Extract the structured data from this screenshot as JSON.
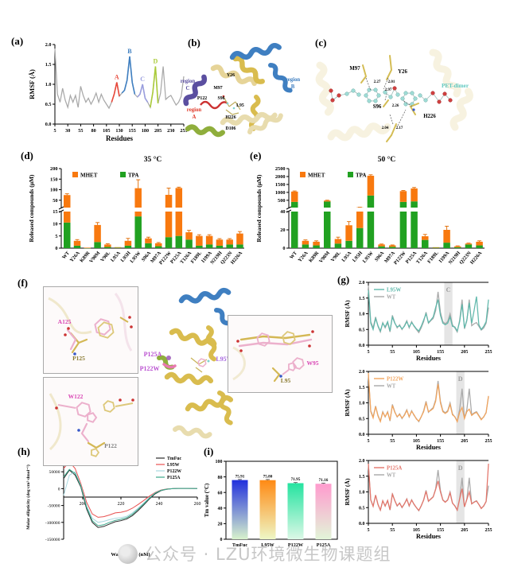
{
  "figure": {
    "panel_labels": {
      "a": "(a)",
      "b": "(b)",
      "c": "(c)",
      "d": "(d)",
      "e": "(e)",
      "f": "(f)",
      "g": "(g)",
      "h": "(h)",
      "i": "(i)"
    }
  },
  "watermark": {
    "logo": "public-account-logo-icon",
    "text": "公众号 · LZU环境微生物课题组"
  },
  "rmsf": {
    "x": [
      5,
      10,
      15,
      20,
      25,
      30,
      35,
      40,
      45,
      50,
      55,
      60,
      65,
      70,
      75,
      80,
      85,
      90,
      95,
      100,
      105,
      110,
      115,
      120,
      125,
      130,
      135,
      140,
      145,
      150,
      155,
      160,
      165,
      170,
      175,
      180,
      185,
      190,
      195,
      200,
      205,
      210,
      215,
      220,
      225,
      230,
      235,
      240,
      245,
      250,
      255
    ],
    "wt": [
      1.9,
      0.75,
      0.55,
      0.9,
      0.6,
      0.42,
      0.72,
      0.55,
      0.72,
      0.42,
      0.95,
      0.72,
      0.55,
      0.65,
      0.5,
      0.62,
      0.78,
      0.55,
      0.75,
      0.6,
      0.5,
      0.4,
      0.55,
      0.75,
      1.05,
      0.7,
      0.78,
      0.85,
      1.1,
      1.7,
      1.05,
      0.75,
      0.68,
      0.75,
      1.0,
      0.65,
      0.55,
      0.42,
      0.8,
      1.45,
      0.52,
      0.78,
      1.45,
      0.62,
      0.68,
      0.72,
      0.6,
      0.48,
      0.55,
      0.7,
      1.2
    ]
  },
  "structure_panels": {
    "b": {
      "regions": [
        {
          "word": "region",
          "letter": "C",
          "color": "#5b4fa0"
        },
        {
          "word": "region",
          "letter": "B",
          "color": "#3f7fc1"
        },
        {
          "word": "region",
          "letter": "A",
          "color": "#e03a2a"
        }
      ],
      "residues": [
        "Y26",
        "M97",
        "P122",
        "S96",
        "L95",
        "H226",
        "D106"
      ]
    },
    "c": {
      "residues": [
        "M97",
        "Y26",
        "S96",
        "H226"
      ],
      "ligand_label": "PET-dimer",
      "distances": [
        "2.27",
        "2.01",
        "2.97",
        "2.26",
        "2.04",
        "2.17"
      ]
    },
    "f": {
      "insets": [
        {
          "mutant": "A125",
          "wild": "P125"
        },
        {
          "mutant": "W122",
          "wild": "P122"
        },
        {
          "mutant": "W95",
          "wild": "L95"
        }
      ],
      "overview_labels": [
        "P125A",
        "P122W",
        "L95W"
      ]
    }
  },
  "chart_data": [
    {
      "panel": "a",
      "type": "line",
      "xlabel": "Residues",
      "ylabel": "RMSF (Å)",
      "xlim": [
        5,
        255
      ],
      "ylim": [
        0,
        2
      ],
      "xticks": [
        5,
        30,
        55,
        80,
        105,
        130,
        155,
        180,
        205,
        230,
        255
      ],
      "ytick_labels": [
        "0.0",
        "0.5",
        "1.0",
        "1.5",
        "2.0"
      ],
      "x": "rmsf",
      "series": [
        {
          "name": "WT",
          "color": "#a8a8a8",
          "wt": true
        }
      ],
      "regions": [
        {
          "label": "A",
          "color": "#e8483a",
          "range": [
            115,
            130
          ]
        },
        {
          "label": "B",
          "color": "#3f7fc1",
          "range": [
            135,
            160
          ]
        },
        {
          "label": "C",
          "color": "#9a9ede",
          "range": [
            165,
            185
          ]
        },
        {
          "label": "D",
          "color": "#aacb3a",
          "range": [
            188,
            207
          ]
        }
      ]
    },
    {
      "panel": "d",
      "type": "stacked_bar",
      "title": "35 °C",
      "ylabel": "Released compounds (μM)",
      "legend": [
        "MHET",
        "TPA"
      ],
      "colors": {
        "MHET": "#f8790f",
        "TPA": "#21a121"
      },
      "categories": [
        "WT",
        "Y26A",
        "K89R",
        "V90M",
        "V90L",
        "L95A",
        "L95H",
        "L95W",
        "S96A",
        "M97A",
        "P122W",
        "P125A",
        "T126A",
        "F189L",
        "I199A",
        "N219H",
        "Q223N",
        "H226A"
      ],
      "TPA": [
        10.5,
        1,
        0.1,
        2.5,
        0.5,
        0.2,
        1,
        13,
        2,
        0.8,
        4.5,
        5,
        3.5,
        1,
        1.5,
        1,
        1.5,
        1.5
      ],
      "MHET": [
        64,
        2,
        0.1,
        7,
        1,
        0.2,
        2,
        94,
        2,
        1.2,
        71,
        103,
        3,
        4,
        3.5,
        2.5,
        2,
        4.5
      ],
      "errors": [
        6,
        0.5,
        0,
        1,
        0.3,
        0.1,
        1,
        40,
        0.5,
        0.3,
        32,
        4,
        0.8,
        0.5,
        0.5,
        0.4,
        0.4,
        0.8
      ],
      "broken_axis": {
        "lower_range": [
          0,
          15
        ],
        "lower_ticks": [
          0,
          5,
          10,
          15
        ],
        "upper_range": [
          15,
          200
        ],
        "upper_ticks": [
          50,
          100,
          150,
          200
        ]
      }
    },
    {
      "panel": "e",
      "type": "stacked_bar",
      "title": "50 °C",
      "ylabel": "Released compounds (μM)",
      "legend": [
        "MHET",
        "TPA"
      ],
      "colors": {
        "MHET": "#f8790f",
        "TPA": "#21a121"
      },
      "categories": [
        "WT",
        "Y26A",
        "K89R",
        "V90M",
        "V90L",
        "L95A",
        "L95H",
        "L95W",
        "S96A",
        "M97A",
        "P122W",
        "P125A",
        "T126A",
        "F189L",
        "I199A",
        "N219H",
        "Q223N",
        "H226A"
      ],
      "TPA": [
        400,
        4,
        3,
        420,
        5,
        8,
        22,
        800,
        2,
        1.5,
        400,
        430,
        9,
        0.5,
        6,
        1,
        4,
        3
      ],
      "MHET": [
        650,
        4,
        4,
        60,
        5,
        17,
        33,
        1250,
        2,
        1.5,
        680,
        820,
        4,
        0.5,
        14,
        1,
        1,
        4
      ],
      "errors": [
        40,
        1,
        1,
        25,
        2,
        4,
        6,
        60,
        0.5,
        0.5,
        40,
        60,
        2,
        0.2,
        4,
        0.5,
        0.5,
        1
      ],
      "broken_axis": {
        "lower_range": [
          0,
          40
        ],
        "lower_ticks": [
          0,
          20,
          40
        ],
        "upper_range": [
          40,
          2500
        ],
        "upper_ticks": [
          500,
          1000,
          1500,
          2000,
          2500
        ]
      }
    },
    {
      "panel": "g1",
      "type": "line",
      "xlabel": "Residues",
      "ylabel": "RMSF (Å)",
      "xlim": [
        5,
        255
      ],
      "ylim": [
        0,
        2
      ],
      "xticks": [
        5,
        55,
        105,
        155,
        205,
        255
      ],
      "ytick_labels": [
        "0.0",
        "0.5",
        "1.0",
        "1.5",
        "2.0"
      ],
      "x": "rmsf",
      "band": {
        "label": "C",
        "range": [
          163,
          180
        ]
      },
      "series": [
        {
          "name": "L95W",
          "color": "#5fb8ab",
          "y": [
            1.75,
            0.7,
            0.5,
            0.85,
            0.62,
            0.45,
            0.7,
            0.58,
            0.75,
            0.45,
            0.9,
            0.7,
            0.58,
            0.62,
            0.52,
            0.6,
            0.75,
            0.58,
            0.72,
            0.62,
            0.52,
            0.45,
            0.6,
            0.8,
            1.0,
            0.72,
            0.8,
            0.9,
            1.2,
            1.45,
            0.95,
            0.7,
            0.65,
            0.7,
            0.9,
            0.6,
            0.58,
            0.45,
            0.75,
            1.3,
            0.55,
            0.8,
            1.35,
            0.7,
            1.1,
            1.55,
            0.65,
            0.5,
            0.6,
            0.75,
            1.45
          ]
        },
        {
          "name": "WT",
          "color": "#a8a8a8",
          "wt": true
        }
      ]
    },
    {
      "panel": "g2",
      "type": "line",
      "xlabel": "Residues",
      "ylabel": "RMSF (Å)",
      "xlim": [
        5,
        255
      ],
      "ylim": [
        0,
        2
      ],
      "xticks": [
        5,
        55,
        105,
        155,
        205,
        255
      ],
      "ytick_labels": [
        "0.0",
        "0.5",
        "1.0",
        "1.5",
        "2.0"
      ],
      "x": "rmsf",
      "band": {
        "label": "D",
        "range": [
          188,
          205
        ]
      },
      "series": [
        {
          "name": "P122W",
          "color": "#f2a45c",
          "y": [
            1.95,
            0.72,
            0.52,
            0.88,
            0.58,
            0.4,
            0.7,
            0.56,
            0.7,
            0.44,
            0.92,
            0.7,
            0.56,
            0.63,
            0.52,
            0.6,
            0.76,
            0.56,
            0.73,
            0.62,
            0.48,
            0.42,
            0.56,
            0.72,
            1.0,
            0.72,
            0.76,
            0.82,
            1.05,
            1.6,
            1.0,
            0.72,
            0.66,
            0.72,
            0.95,
            0.62,
            0.56,
            0.4,
            0.7,
            0.85,
            0.5,
            0.72,
            0.8,
            0.6,
            0.66,
            0.7,
            0.58,
            0.46,
            0.56,
            0.68,
            1.22
          ]
        },
        {
          "name": "WT",
          "color": "#a8a8a8",
          "wt": true
        }
      ]
    },
    {
      "panel": "g3",
      "type": "line",
      "xlabel": "Residues",
      "ylabel": "RMSF (Å)",
      "xlim": [
        5,
        255
      ],
      "ylim": [
        0,
        2
      ],
      "xticks": [
        5,
        55,
        105,
        155,
        205,
        255
      ],
      "ytick_labels": [
        "0.0",
        "0.5",
        "1.0",
        "1.5",
        "2.0"
      ],
      "x": "rmsf",
      "band": {
        "label": "D",
        "range": [
          188,
          205
        ]
      },
      "series": [
        {
          "name": "P125A",
          "color": "#e4756a",
          "y": [
            1.9,
            0.74,
            0.54,
            0.9,
            0.6,
            0.42,
            0.72,
            0.55,
            0.73,
            0.43,
            0.93,
            0.73,
            0.56,
            0.64,
            0.51,
            0.62,
            0.77,
            0.56,
            0.74,
            0.61,
            0.5,
            0.41,
            0.56,
            0.74,
            1.02,
            0.71,
            0.77,
            0.84,
            1.08,
            1.35,
            1.0,
            0.74,
            0.67,
            0.74,
            0.97,
            0.64,
            0.56,
            0.42,
            0.78,
            1.1,
            0.53,
            0.76,
            1.0,
            0.62,
            0.67,
            0.71,
            0.6,
            0.47,
            0.56,
            0.69,
            1.9
          ]
        },
        {
          "name": "WT",
          "color": "#a8a8a8",
          "wt": true
        }
      ]
    },
    {
      "panel": "h",
      "type": "line",
      "xlabel": "Wavelength (nM)",
      "ylabel": "Molar ellipticity (deg·cm²·dmol⁻¹)",
      "xlim": [
        190,
        260
      ],
      "ylim": [
        -150000,
        100000
      ],
      "xticks": [
        200,
        220,
        240,
        260
      ],
      "yticks": [
        100000,
        50000,
        0,
        -50000,
        -100000,
        -150000
      ],
      "x_values": [
        190,
        193,
        196,
        199,
        202,
        205,
        208,
        211,
        214,
        217,
        220,
        223,
        226,
        229,
        232,
        235,
        238,
        241,
        244,
        247,
        250,
        255,
        260
      ],
      "series": [
        {
          "name": "TmFuc",
          "color": "#2b2b2b",
          "y": [
            30000,
            55000,
            40000,
            5000,
            -60000,
            -100000,
            -115000,
            -112000,
            -105000,
            -98000,
            -95000,
            -90000,
            -80000,
            -65000,
            -48000,
            -30000,
            -15000,
            -6000,
            -2000,
            0,
            1000,
            1000,
            500
          ]
        },
        {
          "name": "L95W",
          "color": "#e85050",
          "y": [
            60000,
            80000,
            60000,
            15000,
            -40000,
            -75000,
            -85000,
            -83000,
            -78000,
            -72000,
            -70000,
            -66000,
            -58000,
            -47000,
            -35000,
            -22000,
            -11000,
            -4000,
            -1000,
            0,
            500,
            500,
            300
          ]
        },
        {
          "name": "P122W",
          "color": "#a8d8e0",
          "y": [
            -20000,
            40000,
            50000,
            10000,
            -50000,
            -88000,
            -100000,
            -97000,
            -92000,
            -88000,
            -86000,
            -82000,
            -72000,
            -58000,
            -42000,
            -26000,
            -12000,
            -5000,
            -1500,
            0,
            500,
            500,
            300
          ]
        },
        {
          "name": "P125A",
          "color": "#3aa88a",
          "y": [
            35000,
            57000,
            45000,
            8000,
            -55000,
            -95000,
            -110000,
            -107000,
            -100000,
            -94000,
            -91000,
            -86000,
            -76000,
            -61000,
            -45000,
            -28000,
            -13000,
            -5000,
            -1500,
            0,
            800,
            800,
            400
          ]
        }
      ]
    },
    {
      "panel": "i",
      "type": "gradient_bar",
      "ylabel": "Tm value (°C)",
      "ylim": [
        0,
        100
      ],
      "yticks": [
        0,
        20,
        40,
        60,
        80,
        100
      ],
      "categories": [
        "TmFuc",
        "L95W",
        "P122W",
        "P125A"
      ],
      "values": [
        75.91,
        75.8,
        71.95,
        71.16
      ],
      "value_labels": [
        "75.91",
        "75.80",
        "71.95",
        "71.16"
      ],
      "errors": [
        0.8,
        0.8,
        0.8,
        0.8
      ],
      "gradients": [
        [
          "#2230dd",
          "#d8f2cc"
        ],
        [
          "#ff8a14",
          "#eef7c6"
        ],
        [
          "#25e3a0",
          "#dcf8e6"
        ],
        [
          "#ff9bce",
          "#e2f5d8"
        ]
      ]
    }
  ]
}
